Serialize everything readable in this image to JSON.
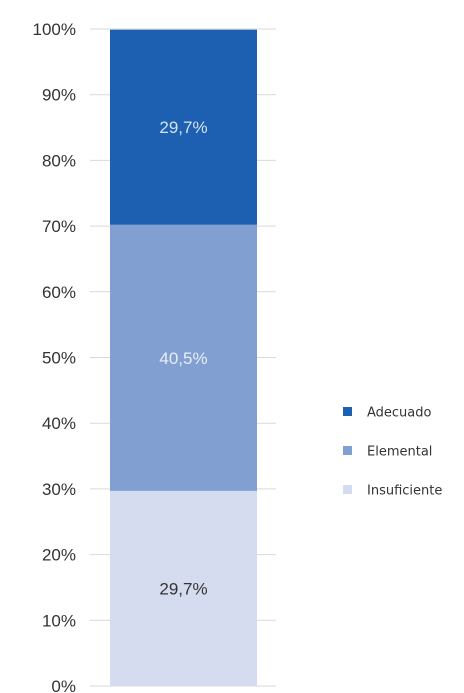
{
  "chart_data": {
    "type": "bar",
    "stacked": true,
    "categories": [
      ""
    ],
    "series": [
      {
        "name": "Insuficiente",
        "values": [
          29.7
        ],
        "label": "29,7%",
        "color": "#d6dcef",
        "label_color": "#333333"
      },
      {
        "name": "Elemental",
        "values": [
          40.5
        ],
        "label": "40,5%",
        "color": "#829fd2",
        "label_color": "#e8eef9"
      },
      {
        "name": "Adecuado",
        "values": [
          29.7
        ],
        "label": "29,7%",
        "color": "#1d5fb0",
        "label_color": "#d5e2f5"
      }
    ],
    "yticks": [
      {
        "value": 0,
        "label": "0%"
      },
      {
        "value": 10,
        "label": "10%"
      },
      {
        "value": 20,
        "label": "20%"
      },
      {
        "value": 30,
        "label": "30%"
      },
      {
        "value": 40,
        "label": "40%"
      },
      {
        "value": 50,
        "label": "50%"
      },
      {
        "value": 60,
        "label": "60%"
      },
      {
        "value": 70,
        "label": "70%"
      },
      {
        "value": 80,
        "label": "80%"
      },
      {
        "value": 90,
        "label": "90%"
      },
      {
        "value": 100,
        "label": "100%"
      }
    ],
    "ylim": [
      0,
      100
    ],
    "legend": {
      "position": "right",
      "entries": [
        "Adecuado",
        "Elemental",
        "Insuficiente"
      ]
    },
    "grid": true
  }
}
